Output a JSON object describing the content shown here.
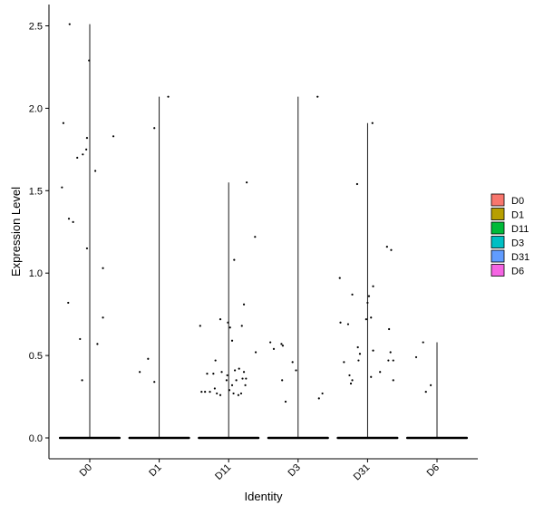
{
  "chart_data": {
    "type": "violin",
    "xlabel": "Identity",
    "ylabel": "Expression Level",
    "categories": [
      "D0",
      "D1",
      "D11",
      "D3",
      "D31",
      "D6"
    ],
    "ylim": [
      -0.12,
      2.58
    ],
    "yticks": [
      0.0,
      0.5,
      1.0,
      1.5,
      2.0,
      2.5
    ],
    "ytick_labels": [
      "0.0",
      "0.5",
      "1.0",
      "1.5",
      "2.0",
      "2.5"
    ],
    "grid": false,
    "legend_position": "right",
    "series": [
      {
        "name": "D0",
        "color": "#F8766D",
        "max": 2.51,
        "points": [
          [
            -0.29,
            2.51
          ],
          [
            -0.01,
            2.29
          ],
          [
            -0.38,
            1.91
          ],
          [
            -0.04,
            1.82
          ],
          [
            0.34,
            1.83
          ],
          [
            -0.05,
            1.75
          ],
          [
            -0.1,
            1.72
          ],
          [
            -0.18,
            1.7
          ],
          [
            0.08,
            1.62
          ],
          [
            -0.4,
            1.52
          ],
          [
            -0.3,
            1.33
          ],
          [
            -0.24,
            1.31
          ],
          [
            -0.04,
            1.15
          ],
          [
            0.19,
            1.03
          ],
          [
            -0.31,
            0.82
          ],
          [
            0.19,
            0.73
          ],
          [
            -0.14,
            0.6
          ],
          [
            0.11,
            0.57
          ],
          [
            -0.11,
            0.35
          ]
        ]
      },
      {
        "name": "D1",
        "color": "#B79F00",
        "max": 2.07,
        "points": [
          [
            0.13,
            2.07
          ],
          [
            -0.07,
            1.88
          ],
          [
            -0.16,
            0.48
          ],
          [
            -0.28,
            0.4
          ],
          [
            -0.07,
            0.34
          ]
        ]
      },
      {
        "name": "D11",
        "color": "#00BA38",
        "max": 1.55,
        "points": [
          [
            0.26,
            1.55
          ],
          [
            0.38,
            1.22
          ],
          [
            0.08,
            1.08
          ],
          [
            0.22,
            0.81
          ],
          [
            -0.12,
            0.72
          ],
          [
            -0.01,
            0.7
          ],
          [
            -0.41,
            0.68
          ],
          [
            0.02,
            0.67
          ],
          [
            0.19,
            0.68
          ],
          [
            0.05,
            0.59
          ],
          [
            0.39,
            0.52
          ],
          [
            -0.19,
            0.47
          ],
          [
            -0.1,
            0.4
          ],
          [
            -0.31,
            0.39
          ],
          [
            -0.22,
            0.39
          ],
          [
            0.09,
            0.41
          ],
          [
            0.15,
            0.42
          ],
          [
            0.22,
            0.4
          ],
          [
            -0.02,
            0.38
          ],
          [
            0.2,
            0.36
          ],
          [
            0.25,
            0.36
          ],
          [
            -0.03,
            0.35
          ],
          [
            0.11,
            0.35
          ],
          [
            0.05,
            0.32
          ],
          [
            0.24,
            0.32
          ],
          [
            -0.2,
            0.3
          ],
          [
            -0.39,
            0.28
          ],
          [
            -0.34,
            0.28
          ],
          [
            -0.27,
            0.28
          ],
          [
            -0.17,
            0.27
          ],
          [
            -0.12,
            0.26
          ],
          [
            0.07,
            0.27
          ],
          [
            0.18,
            0.27
          ],
          [
            0.01,
            0.29
          ],
          [
            0.14,
            0.26
          ]
        ]
      },
      {
        "name": "D3",
        "color": "#00BFC4",
        "max": 2.07,
        "points": [
          [
            0.28,
            2.07
          ],
          [
            -0.4,
            0.58
          ],
          [
            -0.24,
            0.57
          ],
          [
            -0.22,
            0.56
          ],
          [
            -0.35,
            0.54
          ],
          [
            -0.08,
            0.46
          ],
          [
            -0.03,
            0.41
          ],
          [
            -0.23,
            0.35
          ],
          [
            0.35,
            0.27
          ],
          [
            -0.18,
            0.22
          ],
          [
            0.3,
            0.24
          ]
        ]
      },
      {
        "name": "D31",
        "color": "#619CFF",
        "max": 1.91,
        "points": [
          [
            0.07,
            1.91
          ],
          [
            -0.15,
            1.54
          ],
          [
            0.28,
            1.16
          ],
          [
            0.34,
            1.14
          ],
          [
            -0.4,
            0.97
          ],
          [
            0.08,
            0.92
          ],
          [
            -0.22,
            0.87
          ],
          [
            0.02,
            0.86
          ],
          [
            0.0,
            0.82
          ],
          [
            0.05,
            0.73
          ],
          [
            -0.02,
            0.72
          ],
          [
            -0.39,
            0.7
          ],
          [
            -0.28,
            0.69
          ],
          [
            0.31,
            0.66
          ],
          [
            -0.14,
            0.55
          ],
          [
            -0.11,
            0.51
          ],
          [
            0.33,
            0.52
          ],
          [
            -0.34,
            0.46
          ],
          [
            0.37,
            0.47
          ],
          [
            0.3,
            0.47
          ],
          [
            -0.13,
            0.47
          ],
          [
            0.08,
            0.53
          ],
          [
            0.18,
            0.4
          ],
          [
            -0.26,
            0.38
          ],
          [
            0.05,
            0.37
          ],
          [
            -0.22,
            0.35
          ],
          [
            0.37,
            0.35
          ],
          [
            -0.24,
            0.33
          ]
        ]
      },
      {
        "name": "D6",
        "color": "#F564E3",
        "max": 0.58,
        "points": [
          [
            -0.3,
            0.49
          ],
          [
            -0.2,
            0.58
          ],
          [
            -0.09,
            0.32
          ],
          [
            -0.16,
            0.28
          ]
        ]
      }
    ]
  }
}
